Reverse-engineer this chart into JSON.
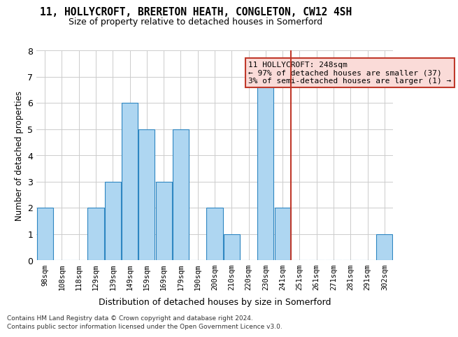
{
  "title": "11, HOLLYCROFT, BRERETON HEATH, CONGLETON, CW12 4SH",
  "subtitle": "Size of property relative to detached houses in Somerford",
  "xlabel": "Distribution of detached houses by size in Somerford",
  "ylabel": "Number of detached properties",
  "footer_line1": "Contains HM Land Registry data © Crown copyright and database right 2024.",
  "footer_line2": "Contains public sector information licensed under the Open Government Licence v3.0.",
  "annotation_title": "11 HOLLYCROFT: 248sqm",
  "annotation_line1": "← 97% of detached houses are smaller (37)",
  "annotation_line2": "3% of semi-detached houses are larger (1) →",
  "property_size": 248,
  "bar_labels": [
    "98sqm",
    "108sqm",
    "118sqm",
    "129sqm",
    "139sqm",
    "149sqm",
    "159sqm",
    "169sqm",
    "179sqm",
    "190sqm",
    "200sqm",
    "210sqm",
    "220sqm",
    "230sqm",
    "241sqm",
    "251sqm",
    "261sqm",
    "271sqm",
    "281sqm",
    "291sqm",
    "302sqm"
  ],
  "bar_values": [
    2,
    0,
    0,
    2,
    3,
    6,
    5,
    3,
    5,
    0,
    2,
    1,
    0,
    7,
    2,
    0,
    0,
    0,
    0,
    0,
    1
  ],
  "bar_color": "#AED6F1",
  "bar_edge_color": "#2E86C1",
  "vline_color": "#C0392B",
  "vline_x_index": 14.5,
  "annotation_box_color": "#FADBD8",
  "annotation_box_edge": "#C0392B",
  "grid_color": "#CCCCCC",
  "background_color": "#FFFFFF",
  "ylim": [
    0,
    8
  ],
  "yticks": [
    0,
    1,
    2,
    3,
    4,
    5,
    6,
    7,
    8
  ]
}
